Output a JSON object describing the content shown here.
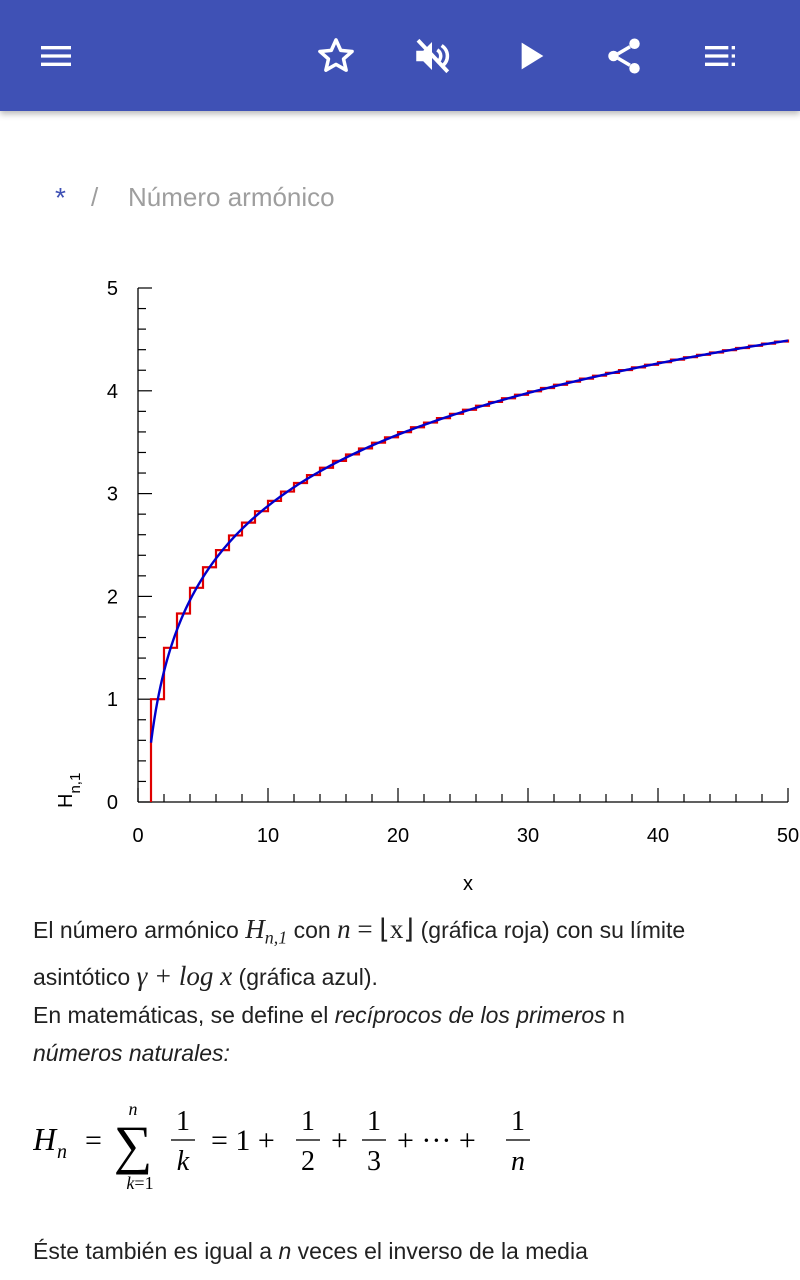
{
  "toolbar": {
    "menu_icon": "menu-icon",
    "favorite_icon": "star-outline-icon",
    "mute_icon": "volume-off-icon",
    "play_icon": "play-icon",
    "share_icon": "share-icon",
    "toc_icon": "table-of-contents-icon",
    "color": "#3f51b5"
  },
  "breadcrumb": {
    "root": "*",
    "separator": "/",
    "title": "Número armónico"
  },
  "chart_data": {
    "type": "line",
    "xlabel": "x",
    "ylabel": "H n,1",
    "xlim": [
      0,
      50
    ],
    "ylim": [
      0,
      5
    ],
    "x_ticks": [
      "0",
      "10",
      "20",
      "30",
      "40",
      "50"
    ],
    "y_ticks": [
      "0",
      "1",
      "2",
      "3",
      "4",
      "5"
    ],
    "series": [
      {
        "kind": "step",
        "color": "#e00000",
        "x": [
          1,
          2,
          3,
          4,
          5,
          6,
          7,
          8,
          9,
          10,
          12,
          14,
          16,
          18,
          20,
          25,
          30,
          35,
          40,
          45,
          50
        ],
        "values": [
          1,
          1.5,
          1.833,
          2.083,
          2.283,
          2.45,
          2.593,
          2.718,
          2.829,
          2.929,
          3.103,
          3.252,
          3.381,
          3.495,
          3.598,
          3.816,
          3.995,
          4.145,
          4.279,
          4.395,
          4.499
        ]
      },
      {
        "kind": "curve",
        "color": "#0000cc",
        "x": [
          1,
          2,
          3,
          4,
          5,
          6,
          7,
          8,
          9,
          10,
          12,
          14,
          16,
          18,
          20,
          25,
          30,
          35,
          40,
          45,
          50
        ],
        "values": [
          0.577,
          1.27,
          1.676,
          1.963,
          2.187,
          2.369,
          2.523,
          2.657,
          2.774,
          2.88,
          3.062,
          3.216,
          3.35,
          3.468,
          3.573,
          3.796,
          3.978,
          4.133,
          4.266,
          4.384,
          4.489
        ]
      }
    ]
  },
  "content": {
    "caption_1": "El número armónico",
    "caption_h": "H",
    "caption_sub": "n,1",
    "caption_2": " con ",
    "caption_n": "n",
    "caption_eq": " = ⌊x⌋ ",
    "caption_3": "(gráfica roja) con su límite",
    "caption_4": "asintótico ",
    "caption_gamma": "γ + log x",
    "caption_5": " (gráfica azul).",
    "para_1": "En matemáticas, se define el ",
    "para_1_italic": "recíprocos de los primeros",
    "para_1_n": " n",
    "para_2_italic": "números naturales:",
    "last_1": "Éste también es igual a ",
    "last_n": "n",
    "last_2": " veces el inverso de la media"
  }
}
